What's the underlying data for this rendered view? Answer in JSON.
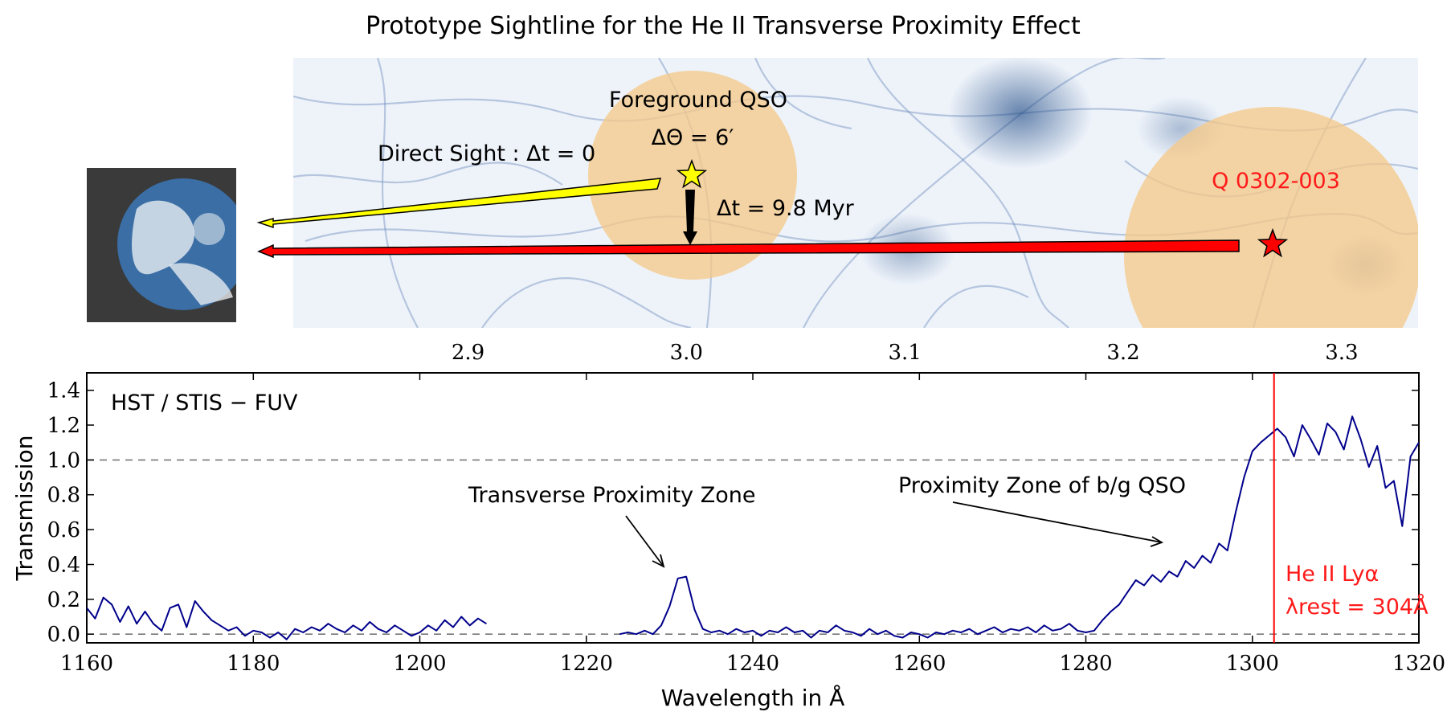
{
  "title": "Prototype Sightline for the He II Transverse Proximity Effect",
  "panel": {
    "fg_label": "Foreground QSO",
    "dtheta_label": "ΔΘ = 6′",
    "direct_label": "Direct Sight :  Δt = 0",
    "dt_label": "Δt = 9.8 Myr",
    "bg_label": "Q 0302-003",
    "z_ticks": [
      "2.9",
      "3.0",
      "3.1",
      "3.2",
      "3.3"
    ],
    "z_tick_values": [
      2.9,
      3.0,
      3.1,
      3.2,
      3.3
    ],
    "z_range": [
      2.82,
      3.335
    ],
    "colors": {
      "star_fg": "#ffff00",
      "star_bg": "#ff0000",
      "zone": "#f5c98a"
    }
  },
  "chart_data": {
    "type": "line",
    "instrument_label": "HST / STIS  − FUV",
    "xlabel": "Wavelength in Å",
    "ylabel": "Transmission",
    "xlim": [
      1160,
      1320
    ],
    "ylim": [
      -0.05,
      1.5
    ],
    "x_ticks": [
      1160,
      1180,
      1200,
      1220,
      1240,
      1260,
      1280,
      1300,
      1320
    ],
    "y_ticks": [
      0.0,
      0.2,
      0.4,
      0.6,
      0.8,
      1.0,
      1.2,
      1.4
    ],
    "x_tick_labels": [
      "1160",
      "1180",
      "1200",
      "1220",
      "1240",
      "1260",
      "1280",
      "1300",
      "1320"
    ],
    "y_tick_labels": [
      "0.0",
      "0.2",
      "0.4",
      "0.6",
      "0.8",
      "1.0",
      "1.2",
      "1.4"
    ],
    "reference_lines_y": [
      0.0,
      1.0
    ],
    "vertical_line_x": 1302.6,
    "vertical_label_1": "He II Lyα",
    "vertical_label_2": "λrest = 304Å",
    "annotation_1": "Transverse Proximity Zone",
    "annotation_2": "Proximity Zone of b/g QSO",
    "line_color": "#00008b",
    "vertical_line_color": "#ff0000",
    "series": [
      {
        "x": [
          1160,
          1161,
          1162,
          1163,
          1164,
          1165,
          1166,
          1167,
          1168,
          1169,
          1170,
          1171,
          1172,
          1173,
          1174,
          1175,
          1176,
          1177,
          1178,
          1179,
          1180,
          1181,
          1182,
          1183,
          1184,
          1185,
          1186,
          1187,
          1188,
          1189,
          1190,
          1191,
          1192,
          1193,
          1194,
          1195,
          1196,
          1197,
          1198,
          1199,
          1200,
          1201,
          1202,
          1203,
          1204,
          1205,
          1206,
          1207,
          1208
        ],
        "y": [
          0.15,
          0.09,
          0.21,
          0.17,
          0.07,
          0.16,
          0.06,
          0.13,
          0.06,
          0.02,
          0.15,
          0.17,
          0.04,
          0.19,
          0.13,
          0.08,
          0.05,
          0.02,
          0.04,
          -0.01,
          0.02,
          0.01,
          -0.02,
          0.01,
          -0.03,
          0.03,
          0.01,
          0.04,
          0.02,
          0.06,
          0.03,
          0.01,
          0.05,
          0.02,
          0.07,
          0.03,
          0.01,
          0.05,
          0.02,
          -0.01,
          0.01,
          0.05,
          0.02,
          0.08,
          0.04,
          0.1,
          0.05,
          0.09,
          0.06
        ]
      },
      {
        "x": [
          1224,
          1225,
          1226,
          1227,
          1228,
          1229,
          1230,
          1231,
          1232,
          1233,
          1234,
          1235,
          1236,
          1237,
          1238,
          1239,
          1240,
          1241,
          1242,
          1243,
          1244,
          1245,
          1246,
          1247,
          1248,
          1249,
          1250,
          1251,
          1252,
          1253,
          1254,
          1255,
          1256,
          1257,
          1258,
          1259,
          1260,
          1261,
          1262,
          1263,
          1264,
          1265,
          1266,
          1267,
          1268,
          1269,
          1270,
          1271,
          1272,
          1273,
          1274,
          1275,
          1276,
          1277,
          1278,
          1279,
          1280,
          1281,
          1282,
          1283,
          1284,
          1285,
          1286,
          1287,
          1288,
          1289,
          1290,
          1291,
          1292,
          1293,
          1294,
          1295,
          1296,
          1297,
          1298,
          1299,
          1300,
          1301,
          1302,
          1303,
          1304,
          1305,
          1306,
          1307,
          1308,
          1309,
          1310,
          1311,
          1312,
          1313,
          1314,
          1315,
          1316,
          1317,
          1318,
          1319,
          1320
        ],
        "y": [
          0.0,
          0.01,
          0.0,
          0.02,
          0.0,
          0.05,
          0.16,
          0.32,
          0.33,
          0.14,
          0.03,
          0.01,
          0.02,
          0.0,
          0.03,
          0.01,
          0.02,
          -0.01,
          0.02,
          0.01,
          0.04,
          0.01,
          0.02,
          -0.02,
          0.02,
          0.01,
          0.05,
          0.02,
          0.01,
          -0.01,
          0.03,
          0.0,
          0.02,
          -0.01,
          -0.02,
          0.01,
          0.0,
          -0.02,
          0.01,
          0.0,
          0.02,
          0.01,
          0.03,
          0.0,
          0.02,
          0.04,
          0.01,
          0.03,
          0.02,
          0.04,
          0.01,
          0.05,
          0.02,
          0.03,
          0.06,
          0.02,
          0.01,
          0.02,
          0.08,
          0.13,
          0.17,
          0.24,
          0.31,
          0.28,
          0.34,
          0.3,
          0.36,
          0.33,
          0.42,
          0.38,
          0.45,
          0.41,
          0.52,
          0.48,
          0.7,
          0.9,
          1.05,
          1.1,
          1.14,
          1.18,
          1.13,
          1.02,
          1.2,
          1.12,
          1.03,
          1.21,
          1.16,
          1.06,
          1.25,
          1.12,
          0.96,
          1.08,
          0.84,
          0.88,
          0.62,
          1.02,
          1.1
        ]
      }
    ]
  }
}
